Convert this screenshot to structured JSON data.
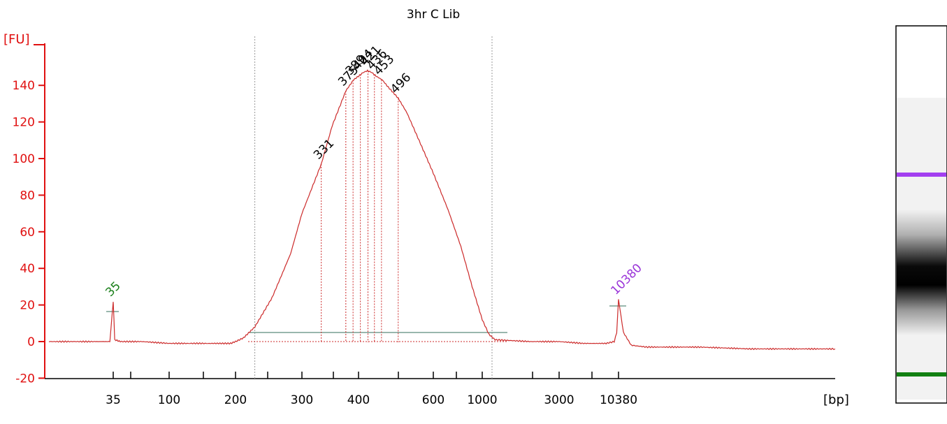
{
  "chart_data": {
    "type": "line",
    "title": "3hr C Lib",
    "ylabel": "[FU]",
    "xlabel": "[bp]",
    "ylim": [
      -20,
      150
    ],
    "y_ticks": [
      -20,
      0,
      20,
      40,
      60,
      80,
      100,
      120,
      140
    ],
    "x_tick_labels": [
      "35",
      "100",
      "200",
      "300",
      "400",
      "600",
      "1000",
      "3000",
      "10380"
    ],
    "series": [
      {
        "x": [
          20,
          30,
          34,
          35,
          36,
          40,
          60,
          100,
          150,
          190,
          200,
          210,
          225,
          250,
          280,
          300,
          331,
          350,
          375,
          390,
          400,
          410,
          420,
          430,
          440,
          455,
          470,
          496,
          520,
          560,
          600,
          700,
          800,
          900,
          1000,
          1100,
          1200,
          2000,
          3000,
          5000,
          8000,
          9500,
          10000,
          10380,
          10800,
          11500,
          13000,
          20000,
          30000,
          60000
        ],
        "y": [
          0,
          0,
          0,
          22,
          1,
          0,
          0,
          -1,
          -1,
          -1,
          0,
          2,
          8,
          24,
          48,
          70,
          97,
          118,
          137,
          143,
          145,
          147,
          148,
          147,
          145,
          143,
          139,
          133,
          125,
          108,
          92,
          72,
          52,
          30,
          12,
          4,
          1,
          0,
          0,
          -1,
          -1,
          0,
          5,
          23,
          5,
          -2,
          -3,
          -3,
          -4,
          -4
        ]
      }
    ],
    "peaks": [
      {
        "label": "35",
        "x": 35,
        "y": 22,
        "color": "#1a7f1a"
      },
      {
        "label": "331",
        "x": 331,
        "y": 97,
        "color": "#000000"
      },
      {
        "label": "375",
        "x": 375,
        "y": 137,
        "color": "#000000"
      },
      {
        "label": "389",
        "x": 389,
        "y": 143,
        "color": "#000000"
      },
      {
        "label": "404",
        "x": 404,
        "y": 146,
        "color": "#000000"
      },
      {
        "label": "421",
        "x": 421,
        "y": 148,
        "color": "#000000"
      },
      {
        "label": "436",
        "x": 436,
        "y": 146,
        "color": "#000000"
      },
      {
        "label": "453",
        "x": 453,
        "y": 143,
        "color": "#000000"
      },
      {
        "label": "496",
        "x": 496,
        "y": 133,
        "color": "#000000"
      },
      {
        "label": "10380",
        "x": 10380,
        "y": 23,
        "color": "#9a34d8"
      }
    ],
    "region_bounds": [
      225,
      1150
    ],
    "gel_markers": {
      "upper": "#a33ff0",
      "lower": "#128012"
    },
    "colors": {
      "axis": "#e01010",
      "trace": "#cc2a2a",
      "baseline": "#5c8c7c",
      "gridline": "#999999"
    }
  }
}
